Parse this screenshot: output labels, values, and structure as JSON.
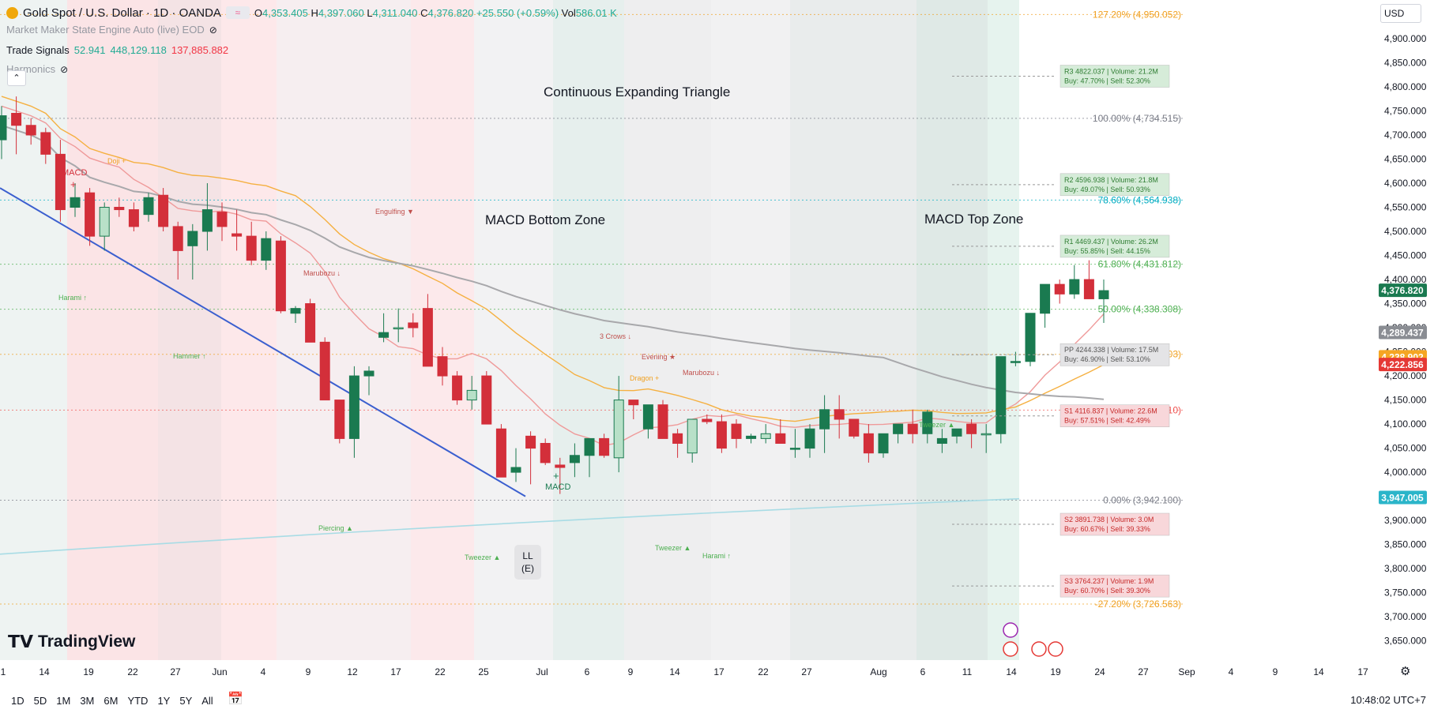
{
  "header": {
    "symbol": "Gold Spot / U.S. Dollar · 1D · OANDA",
    "o_label": "O",
    "o": "4,353.405",
    "h_label": "H",
    "h": "4,397.060",
    "l_label": "L",
    "l": "4,311.040",
    "c_label": "C",
    "c": "4,376.820",
    "change": "+25.550 (+0.59%)",
    "vol_label": "Vol",
    "vol": "586.01 K"
  },
  "indicators": {
    "mm_engine": "Market Maker State Engine Auto (live) EOD",
    "trade_signals_label": "Trade Signals",
    "ts1": "52.941",
    "ts2": "448,129.118",
    "ts3": "137,885.882",
    "harmonics": "Harmonics"
  },
  "currency": "USD",
  "brand": "TradingView",
  "timeframes": [
    "1D",
    "5D",
    "1M",
    "3M",
    "6M",
    "YTD",
    "1Y",
    "5Y",
    "All"
  ],
  "clock": "10:48:02 UTC+7",
  "colors": {
    "up": "#1a7a50",
    "down": "#d32f3a",
    "accent": "#2962ff"
  },
  "chart_data": {
    "type": "candlestick",
    "ylim": [
      3620,
      4990
    ],
    "y_ticks": [
      3650,
      3700,
      3750,
      3800,
      3850,
      3900,
      3950,
      4000,
      4050,
      4100,
      4150,
      4200,
      4250,
      4300,
      4350,
      4400,
      4450,
      4500,
      4550,
      4600,
      4650,
      4700,
      4750,
      4800,
      4850,
      4900
    ],
    "y_tick_labels": [
      "3,650.000",
      "3,700.000",
      "3,750.000",
      "3,800.000",
      "3,850.000",
      "3,900.000",
      "3,950.000",
      "4,000.000",
      "4,050.000",
      "4,100.000",
      "4,150.000",
      "4,200.000",
      "4,250.000",
      "4,300.000",
      "4,350.000",
      "4,400.000",
      "4,450.000",
      "4,500.000",
      "4,550.000",
      "4,600.000",
      "4,650.000",
      "4,700.000",
      "4,750.000",
      "4,800.000",
      "4,850.000",
      "4,900.000"
    ],
    "x_labels": [
      "1",
      "14",
      "19",
      "22",
      "27",
      "Jun",
      "4",
      "9",
      "12",
      "17",
      "22",
      "25",
      "Jul",
      "6",
      "9",
      "14",
      "17",
      "22",
      "27",
      "Aug",
      "6",
      "11",
      "14",
      "19",
      "24",
      "27",
      "Sep",
      "4",
      "9",
      "14",
      "17"
    ],
    "candles": [
      [
        4690,
        4760,
        4650,
        4740
      ],
      [
        4745,
        4780,
        4660,
        4720
      ],
      [
        4720,
        4735,
        4680,
        4700
      ],
      [
        4705,
        4715,
        4640,
        4660
      ],
      [
        4660,
        4690,
        4520,
        4545
      ],
      [
        4550,
        4600,
        4530,
        4570
      ],
      [
        4580,
        4590,
        4470,
        4490
      ],
      [
        4490,
        4560,
        4460,
        4550
      ],
      [
        4550,
        4570,
        4530,
        4545
      ],
      [
        4545,
        4560,
        4500,
        4510
      ],
      [
        4535,
        4580,
        4520,
        4570
      ],
      [
        4575,
        4590,
        4500,
        4510
      ],
      [
        4510,
        4520,
        4400,
        4460
      ],
      [
        4470,
        4515,
        4400,
        4500
      ],
      [
        4500,
        4600,
        4460,
        4545
      ],
      [
        4540,
        4560,
        4480,
        4510
      ],
      [
        4495,
        4545,
        4460,
        4490
      ],
      [
        4490,
        4520,
        4430,
        4440
      ],
      [
        4440,
        4500,
        4420,
        4485
      ],
      [
        4480,
        4490,
        4330,
        4335
      ],
      [
        4330,
        4345,
        4310,
        4340
      ],
      [
        4350,
        4360,
        4270,
        4270
      ],
      [
        4270,
        4280,
        4150,
        4150
      ],
      [
        4150,
        4150,
        4060,
        4070
      ],
      [
        4070,
        4220,
        4030,
        4200
      ],
      [
        4200,
        4220,
        4160,
        4210
      ],
      [
        4280,
        4330,
        4270,
        4290
      ],
      [
        4300,
        4340,
        4270,
        4300
      ],
      [
        4310,
        4330,
        4280,
        4300
      ],
      [
        4340,
        4370,
        4220,
        4220
      ],
      [
        4240,
        4260,
        4180,
        4200
      ],
      [
        4200,
        4210,
        4140,
        4150
      ],
      [
        4150,
        4200,
        4130,
        4170
      ],
      [
        4200,
        4210,
        4100,
        4100
      ],
      [
        4090,
        4100,
        3990,
        3990
      ],
      [
        4000,
        4050,
        3980,
        4010
      ],
      [
        4075,
        4085,
        3975,
        4050
      ],
      [
        4060,
        4070,
        4015,
        4020
      ],
      [
        4015,
        4030,
        3955,
        4010
      ],
      [
        4020,
        4060,
        3990,
        4035
      ],
      [
        4035,
        4070,
        3990,
        4070
      ],
      [
        4070,
        4080,
        4030,
        4035
      ],
      [
        4030,
        4200,
        4000,
        4150
      ],
      [
        4150,
        4150,
        4110,
        4140
      ],
      [
        4090,
        4140,
        4070,
        4140
      ],
      [
        4140,
        4150,
        4070,
        4070
      ],
      [
        4080,
        4090,
        4030,
        4060
      ],
      [
        4040,
        4110,
        4020,
        4110
      ],
      [
        4110,
        4120,
        4100,
        4105
      ],
      [
        4105,
        4120,
        4040,
        4050
      ],
      [
        4100,
        4110,
        4050,
        4070
      ],
      [
        4070,
        4080,
        4060,
        4075
      ],
      [
        4070,
        4100,
        4060,
        4080
      ],
      [
        4080,
        4110,
        4060,
        4060
      ],
      [
        4050,
        4090,
        4030,
        4050
      ],
      [
        4050,
        4100,
        4030,
        4090
      ],
      [
        4090,
        4160,
        4040,
        4130
      ],
      [
        4130,
        4160,
        4070,
        4110
      ],
      [
        4110,
        4110,
        4070,
        4075
      ],
      [
        4080,
        4100,
        4020,
        4040
      ],
      [
        4040,
        4080,
        4030,
        4080
      ],
      [
        4080,
        4100,
        4060,
        4100
      ],
      [
        4100,
        4130,
        4060,
        4080
      ],
      [
        4080,
        4130,
        4060,
        4125
      ],
      [
        4060,
        4090,
        4040,
        4070
      ],
      [
        4075,
        4090,
        4060,
        4090
      ],
      [
        4100,
        4110,
        4050,
        4080
      ],
      [
        4080,
        4100,
        4040,
        4080
      ],
      [
        4080,
        4240,
        4060,
        4240
      ],
      [
        4230,
        4250,
        4220,
        4230
      ],
      [
        4230,
        4330,
        4220,
        4330
      ],
      [
        4330,
        4390,
        4300,
        4390
      ],
      [
        4390,
        4400,
        4350,
        4370
      ],
      [
        4370,
        4430,
        4360,
        4400
      ],
      [
        4400,
        4440,
        4360,
        4360
      ],
      [
        4360,
        4400,
        4310,
        4377
      ]
    ],
    "levels": [
      {
        "name": "127.20%",
        "label": "127.20% (4,950.052)",
        "value": 4950.052,
        "color": "#f0a020"
      },
      {
        "name": "100.00%",
        "label": "100.00% (4,734.515)",
        "value": 4734.515,
        "color": "#787b86"
      },
      {
        "name": "78.60%",
        "label": "78.60% (4,564.938)",
        "value": 4564.938,
        "color": "#00acc1"
      },
      {
        "name": "61.80%",
        "label": "61.80% (4,431.812)",
        "value": 4431.812,
        "color": "#4caf50"
      },
      {
        "name": "50.00%",
        "label": "50.00% (4,338.308)",
        "value": 4338.308,
        "color": "#4caf50"
      },
      {
        "name": "38.20%",
        "label": "38.20% (4,244.803)",
        "value": 4244.803,
        "color": "#f0a020"
      },
      {
        "name": "23.60%",
        "label": "23.60% (4,129.110)",
        "value": 4129.11,
        "color": "#ef5350"
      },
      {
        "name": "0.00%",
        "label": "0.00% (3,942.100)",
        "value": 3942.1,
        "color": "#787b86"
      },
      {
        "name": "-27.20%",
        "label": "-27.20% (3,726.563)",
        "value": 3726.563,
        "color": "#f0a020"
      }
    ],
    "price_tags": [
      {
        "text": "4,376.820",
        "value": 4376.82,
        "bg": "#1a7a50"
      },
      {
        "text": "4,289.437",
        "value": 4289.437,
        "bg": "#8a8d93"
      },
      {
        "text": "4,238.902",
        "value": 4238.902,
        "bg": "#f5a623"
      },
      {
        "text": "4,222.856",
        "value": 4222.856,
        "bg": "#e53935"
      },
      {
        "text": "3,947.005",
        "value": 3947.005,
        "bg": "#2bb5c9"
      }
    ],
    "pivots": [
      {
        "line1": "R3 4822.037 | Volume: 21.2M",
        "line2": "Buy: 47.70% | Sell: 52.30%",
        "value": 4822,
        "tone": "green"
      },
      {
        "line1": "R2 4596.938 | Volume: 21.8M",
        "line2": "Buy: 49.07% | Sell: 50.93%",
        "value": 4597,
        "tone": "green"
      },
      {
        "line1": "R1 4469.437 | Volume: 26.2M",
        "line2": "Buy: 55.85% | Sell: 44.15%",
        "value": 4469,
        "tone": "green"
      },
      {
        "line1": "PP 4244.338 | Volume: 17.5M",
        "line2": "Buy: 46.90% | Sell: 53.10%",
        "value": 4244,
        "tone": "gray"
      },
      {
        "line1": "S1 4116.837 | Volume: 22.6M",
        "line2": "Buy: 57.51% | Sell: 42.49%",
        "value": 4117,
        "tone": "red"
      },
      {
        "line1": "S2 3891.738 | Volume: 3.0M",
        "line2": "Buy: 60.67% | Sell: 39.33%",
        "value": 3892,
        "tone": "red"
      },
      {
        "line1": "S3 3764.237 | Volume: 1.9M",
        "line2": "Buy: 60.70% | Sell: 39.30%",
        "value": 3764,
        "tone": "red"
      }
    ],
    "annotations": {
      "triangle": "Continuous Expanding Triangle",
      "macd_bottom": "MACD Bottom Zone",
      "macd_top": "MACD Top Zone",
      "macd1": "MACD",
      "macd2": "MACD",
      "ll_line1": "LL",
      "ll_line2": "(E)",
      "patterns": [
        {
          "text": "Doji +",
          "color": "#f0a020"
        },
        {
          "text": "Engulfing ▼",
          "color": "#c0504d"
        },
        {
          "text": "Harami ↑",
          "color": "#4caf50"
        },
        {
          "text": "Marubozu ↓",
          "color": "#c0504d"
        },
        {
          "text": "Hammer ↑",
          "color": "#4caf50"
        },
        {
          "text": "3 Crows ↓",
          "color": "#c0504d"
        },
        {
          "text": "Evening ★",
          "color": "#c0504d"
        },
        {
          "text": "Dragon +",
          "color": "#f0a020"
        },
        {
          "text": "Marubozu ↓",
          "color": "#c0504d"
        },
        {
          "text": "Piercing ▲",
          "color": "#4caf50"
        },
        {
          "text": "Tweezer ▲",
          "color": "#4caf50"
        },
        {
          "text": "Tweezer ▲",
          "color": "#4caf50"
        },
        {
          "text": "Harami ↑",
          "color": "#4caf50"
        },
        {
          "text": "Tweezer ▲",
          "color": "#4caf50"
        }
      ]
    }
  }
}
